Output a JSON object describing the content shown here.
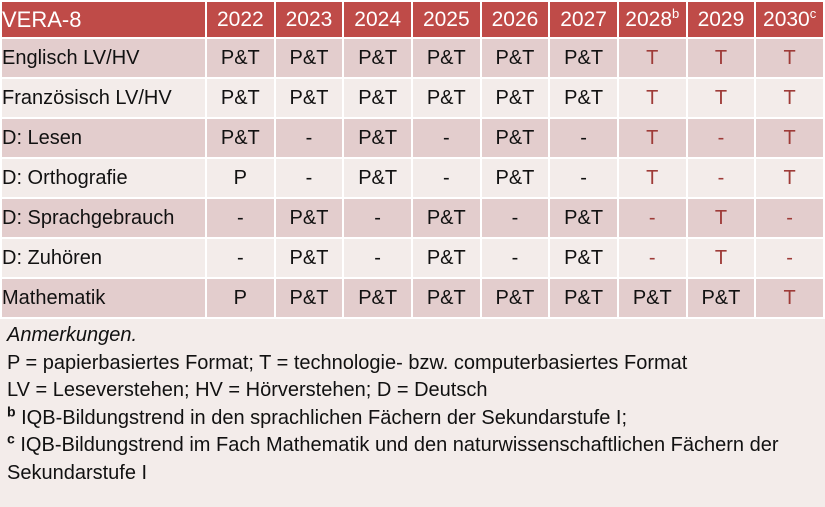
{
  "colors": {
    "header_bg": "#BF4B48",
    "band_dark": "#E3CDCD",
    "band_light": "#F3ECEA",
    "accent_text": "#9E3B38",
    "header_text": "#FFFFFF",
    "body_text": "#111111"
  },
  "table": {
    "title": "VERA-8",
    "columns": [
      {
        "label": "2022",
        "sup": ""
      },
      {
        "label": "2023",
        "sup": ""
      },
      {
        "label": "2024",
        "sup": ""
      },
      {
        "label": "2025",
        "sup": ""
      },
      {
        "label": "2026",
        "sup": ""
      },
      {
        "label": "2027",
        "sup": ""
      },
      {
        "label": "2028",
        "sup": "b"
      },
      {
        "label": "2029",
        "sup": ""
      },
      {
        "label": "2030",
        "sup": "c"
      }
    ],
    "rows": [
      {
        "label": "Englisch LV/HV",
        "band": "dark",
        "cells": [
          {
            "text": "P&T",
            "accent": false
          },
          {
            "text": "P&T",
            "accent": false
          },
          {
            "text": "P&T",
            "accent": false
          },
          {
            "text": "P&T",
            "accent": false
          },
          {
            "text": "P&T",
            "accent": false
          },
          {
            "text": "P&T",
            "accent": false
          },
          {
            "text": "T",
            "accent": true
          },
          {
            "text": "T",
            "accent": true
          },
          {
            "text": "T",
            "accent": true
          }
        ]
      },
      {
        "label": "Französisch LV/HV",
        "band": "light",
        "cells": [
          {
            "text": "P&T",
            "accent": false
          },
          {
            "text": "P&T",
            "accent": false
          },
          {
            "text": "P&T",
            "accent": false
          },
          {
            "text": "P&T",
            "accent": false
          },
          {
            "text": "P&T",
            "accent": false
          },
          {
            "text": "P&T",
            "accent": false
          },
          {
            "text": "T",
            "accent": true
          },
          {
            "text": "T",
            "accent": true
          },
          {
            "text": "T",
            "accent": true
          }
        ]
      },
      {
        "label": "D: Lesen",
        "band": "dark",
        "cells": [
          {
            "text": "P&T",
            "accent": false
          },
          {
            "text": "-",
            "accent": false
          },
          {
            "text": "P&T",
            "accent": false
          },
          {
            "text": "-",
            "accent": false
          },
          {
            "text": "P&T",
            "accent": false
          },
          {
            "text": "-",
            "accent": false
          },
          {
            "text": "T",
            "accent": true
          },
          {
            "text": "-",
            "accent": true
          },
          {
            "text": "T",
            "accent": true
          }
        ]
      },
      {
        "label": "D: Orthografie",
        "band": "light",
        "cells": [
          {
            "text": "P",
            "accent": false
          },
          {
            "text": "-",
            "accent": false
          },
          {
            "text": "P&T",
            "accent": false
          },
          {
            "text": "-",
            "accent": false
          },
          {
            "text": "P&T",
            "accent": false
          },
          {
            "text": "-",
            "accent": false
          },
          {
            "text": "T",
            "accent": true
          },
          {
            "text": "-",
            "accent": true
          },
          {
            "text": "T",
            "accent": true
          }
        ]
      },
      {
        "label": "D: Sprachgebrauch",
        "band": "dark",
        "cells": [
          {
            "text": "-",
            "accent": false
          },
          {
            "text": "P&T",
            "accent": false
          },
          {
            "text": "-",
            "accent": false
          },
          {
            "text": "P&T",
            "accent": false
          },
          {
            "text": "-",
            "accent": false
          },
          {
            "text": "P&T",
            "accent": false
          },
          {
            "text": "-",
            "accent": true
          },
          {
            "text": "T",
            "accent": true
          },
          {
            "text": "-",
            "accent": true
          }
        ]
      },
      {
        "label": "D: Zuhören",
        "band": "light",
        "cells": [
          {
            "text": "-",
            "accent": false
          },
          {
            "text": "P&T",
            "accent": false
          },
          {
            "text": "-",
            "accent": false
          },
          {
            "text": "P&T",
            "accent": false
          },
          {
            "text": "-",
            "accent": false
          },
          {
            "text": "P&T",
            "accent": false
          },
          {
            "text": "-",
            "accent": true
          },
          {
            "text": "T",
            "accent": true
          },
          {
            "text": "-",
            "accent": true
          }
        ]
      },
      {
        "label": "Mathematik",
        "band": "dark",
        "cells": [
          {
            "text": "P",
            "accent": false
          },
          {
            "text": "P&T",
            "accent": false
          },
          {
            "text": "P&T",
            "accent": false
          },
          {
            "text": "P&T",
            "accent": false
          },
          {
            "text": "P&T",
            "accent": false
          },
          {
            "text": "P&T",
            "accent": false
          },
          {
            "text": "P&T",
            "accent": false
          },
          {
            "text": "P&T",
            "accent": false
          },
          {
            "text": "T",
            "accent": true
          }
        ]
      }
    ]
  },
  "notes": {
    "heading": "Anmerkungen.",
    "formats_line": "P = papierbasiertes Format; T = technologie- bzw. computerbasiertes Format",
    "abbreviations_line": "LV = Leseverstehen; HV = Hörverstehen; D = Deutsch",
    "footnote_b_marker": "b",
    "footnote_b_text": "IQB-Bildungstrend in den sprachlichen Fächern der Sekundarstufe I;",
    "footnote_c_marker": "c",
    "footnote_c_text": "IQB-Bildungstrend im Fach Mathematik und den naturwissenschaftlichen Fächern der Sekundarstufe I"
  }
}
